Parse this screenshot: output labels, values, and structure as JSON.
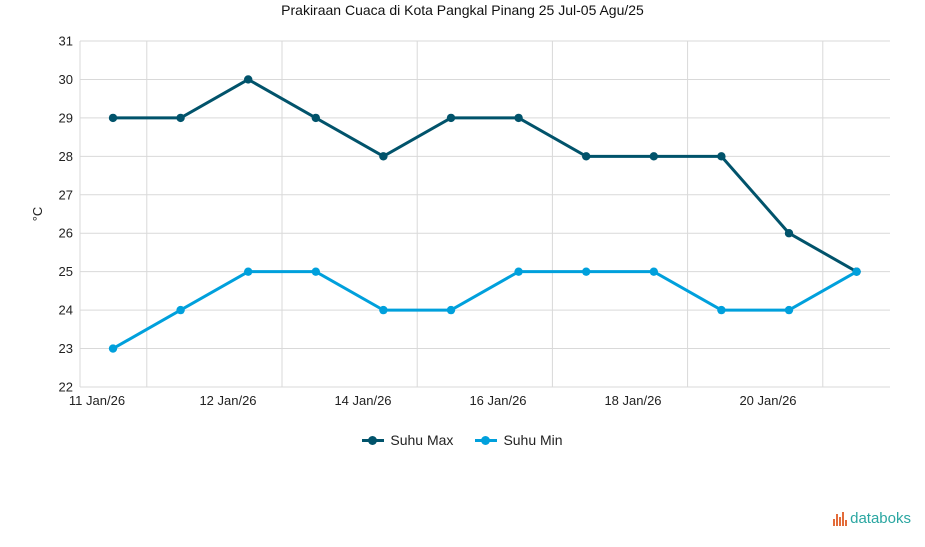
{
  "chart_data": {
    "type": "line",
    "title": "Prakiraan Cuaca di Kota Pangkal Pinang 25 Jul-05 Agu/25",
    "ylabel": "°C",
    "xlabel": "",
    "ylim": [
      22,
      31
    ],
    "yticks": [
      22,
      23,
      24,
      25,
      26,
      27,
      28,
      29,
      30,
      31
    ],
    "x": [
      "2026-01-11",
      "2026-01-11T12:00",
      "2026-01-12",
      "2026-01-12T12:00",
      "2026-01-13",
      "2026-01-13T12:00",
      "2026-01-14",
      "2026-01-14T12:00",
      "2026-01-15",
      "2026-01-15T12:00",
      "2026-01-16",
      "2026-01-16T12:00"
    ],
    "xticks": [
      "11 Jan/26",
      "12 Jan/26",
      "14 Jan/26",
      "16 Jan/26",
      "18 Jan/26",
      "20 Jan/26"
    ],
    "grid": true,
    "legend_position": "bottom",
    "series": [
      {
        "name": "Suhu Max",
        "color": "#01536b",
        "values": [
          29,
          29,
          30,
          29,
          28,
          29,
          29,
          28,
          28,
          28,
          26,
          25
        ]
      },
      {
        "name": "Suhu Min",
        "color": "#00a0dc",
        "values": [
          23,
          24,
          25,
          25,
          24,
          24,
          25,
          25,
          25,
          24,
          24,
          25
        ]
      }
    ]
  },
  "brand": {
    "name": "databoks",
    "color": "#2aa6a1"
  }
}
